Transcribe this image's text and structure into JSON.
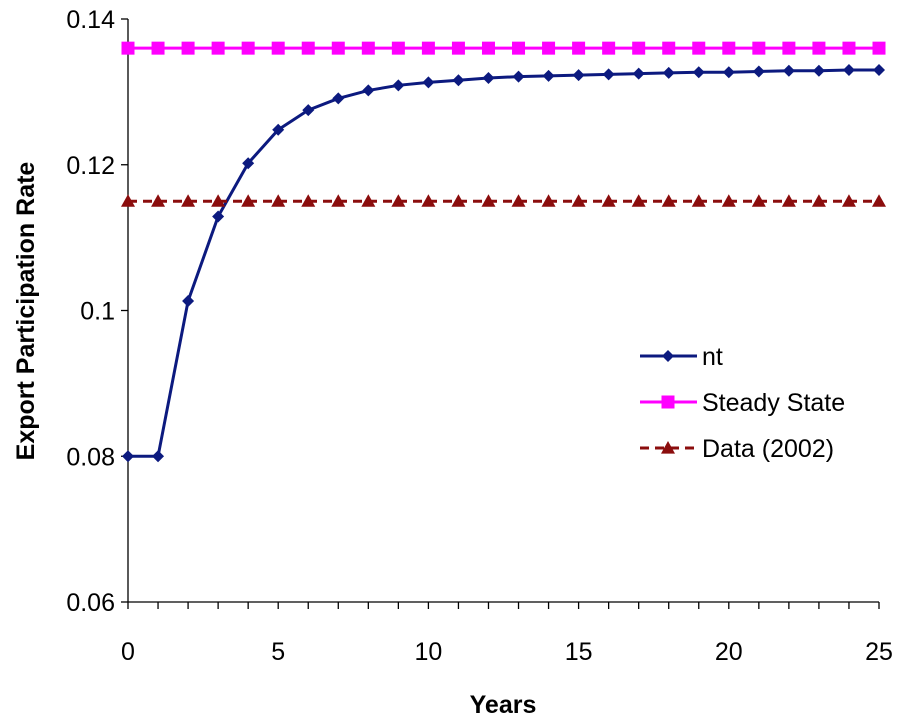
{
  "chart_data": {
    "type": "line",
    "title": "",
    "xlabel": "Years",
    "ylabel": "Export Participation Rate",
    "xlim": [
      0,
      25
    ],
    "ylim": [
      0.06,
      0.14
    ],
    "x_ticks": [
      0,
      5,
      10,
      15,
      20,
      25
    ],
    "x_tick_labels": [
      "0",
      "5",
      "10",
      "15",
      "20",
      "25"
    ],
    "y_ticks": [
      0.06,
      0.08,
      0.1,
      0.12,
      0.14
    ],
    "y_tick_labels": [
      "0.06",
      "0.08",
      "0.1",
      "0.12",
      "0.14"
    ],
    "grid": false,
    "legend": {
      "position": "right",
      "entries": [
        "nt",
        "Steady State",
        "Data (2002)"
      ]
    },
    "x": [
      0,
      1,
      2,
      3,
      4,
      5,
      6,
      7,
      8,
      9,
      10,
      11,
      12,
      13,
      14,
      15,
      16,
      17,
      18,
      19,
      20,
      21,
      22,
      23,
      24,
      25
    ],
    "series": [
      {
        "name": "nt",
        "color": "#0c1a7f",
        "marker": "diamond",
        "line": "solid",
        "values": [
          0.08,
          0.08,
          0.1013,
          0.1129,
          0.1202,
          0.1248,
          0.1275,
          0.1291,
          0.1302,
          0.1309,
          0.1313,
          0.1316,
          0.1319,
          0.1321,
          0.1322,
          0.1323,
          0.1324,
          0.1325,
          0.1326,
          0.1327,
          0.1327,
          0.1328,
          0.1329,
          0.1329,
          0.133,
          0.133
        ]
      },
      {
        "name": "Steady State",
        "color": "#ff00ff",
        "marker": "square",
        "line": "solid",
        "values": [
          0.136,
          0.136,
          0.136,
          0.136,
          0.136,
          0.136,
          0.136,
          0.136,
          0.136,
          0.136,
          0.136,
          0.136,
          0.136,
          0.136,
          0.136,
          0.136,
          0.136,
          0.136,
          0.136,
          0.136,
          0.136,
          0.136,
          0.136,
          0.136,
          0.136,
          0.136
        ]
      },
      {
        "name": "Data (2002)",
        "color": "#8b0d0d",
        "marker": "triangle",
        "line": "dashed",
        "values": [
          0.115,
          0.115,
          0.115,
          0.115,
          0.115,
          0.115,
          0.115,
          0.115,
          0.115,
          0.115,
          0.115,
          0.115,
          0.115,
          0.115,
          0.115,
          0.115,
          0.115,
          0.115,
          0.115,
          0.115,
          0.115,
          0.115,
          0.115,
          0.115,
          0.115,
          0.115
        ]
      }
    ]
  }
}
